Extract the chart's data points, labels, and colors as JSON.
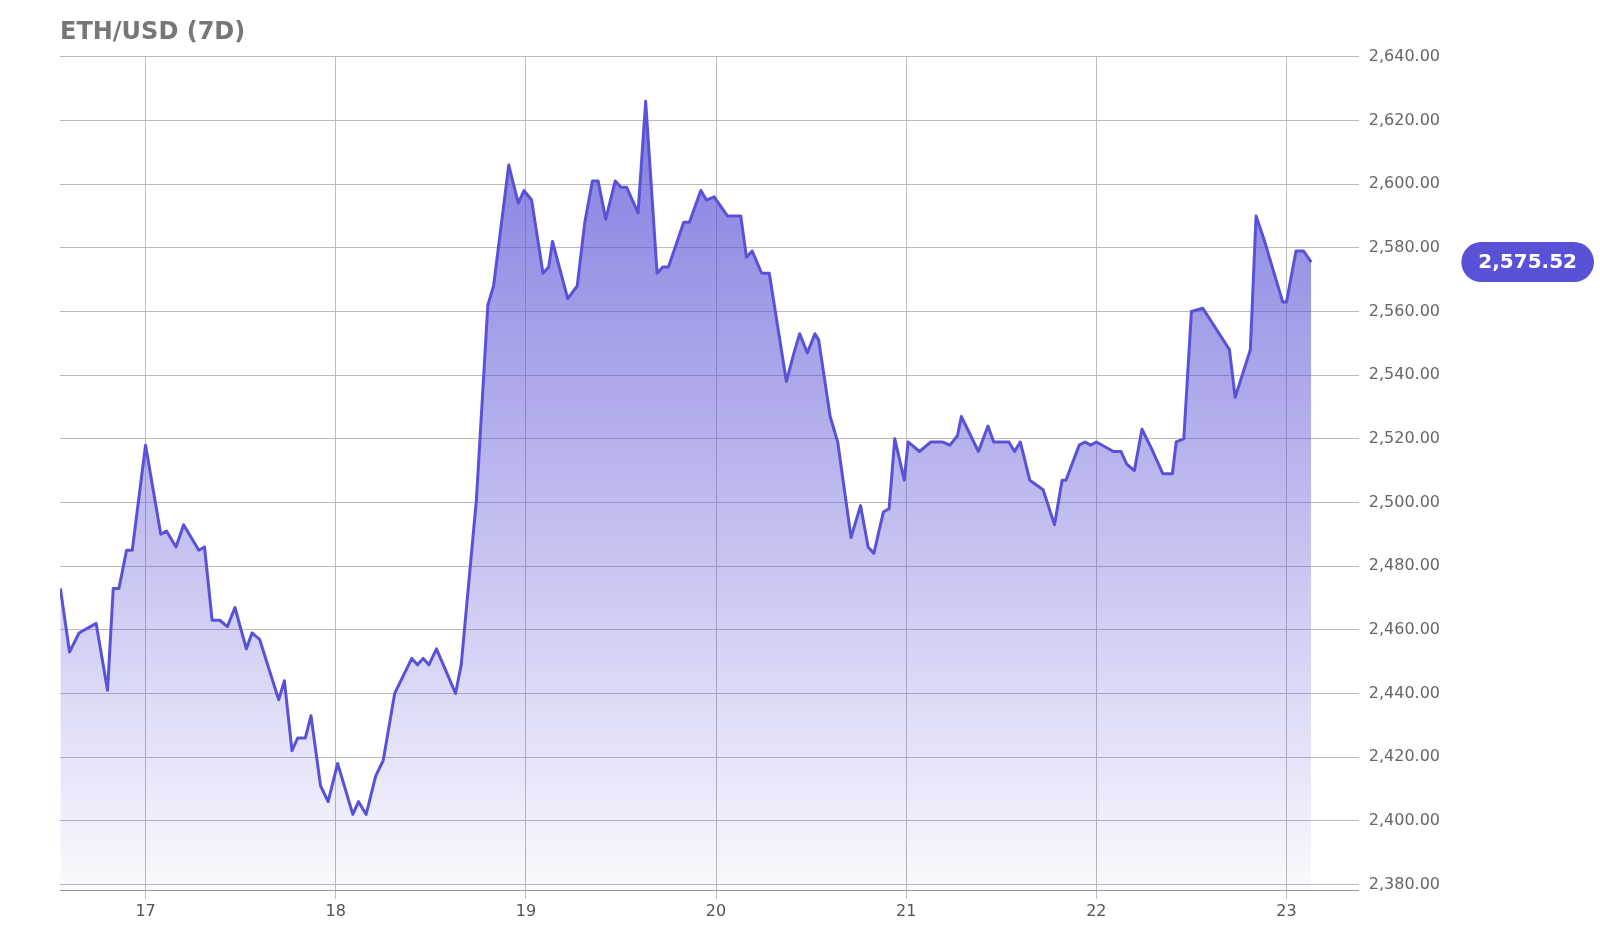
{
  "chart_data": {
    "type": "area",
    "title": "ETH/USD (7D)",
    "x": [
      16.552,
      16.6,
      16.65,
      16.74,
      16.8,
      16.83,
      16.86,
      16.9,
      16.93,
      17.0,
      17.08,
      17.11,
      17.16,
      17.2,
      17.28,
      17.31,
      17.35,
      17.39,
      17.43,
      17.47,
      17.53,
      17.56,
      17.6,
      17.7,
      17.73,
      17.77,
      17.8,
      17.84,
      17.87,
      17.92,
      17.96,
      18.01,
      18.09,
      18.12,
      18.16,
      18.21,
      18.25,
      18.31,
      18.4,
      18.43,
      18.46,
      18.49,
      18.53,
      18.63,
      18.66,
      18.74,
      18.8,
      18.83,
      18.91,
      18.96,
      18.99,
      19.03,
      19.09,
      19.12,
      19.14,
      19.22,
      19.27,
      19.31,
      19.35,
      19.38,
      19.42,
      19.47,
      19.5,
      19.53,
      19.59,
      19.63,
      19.69,
      19.72,
      19.75,
      19.83,
      19.86,
      19.92,
      19.95,
      19.99,
      20.06,
      20.13,
      20.16,
      20.19,
      20.24,
      20.28,
      20.37,
      20.41,
      20.44,
      20.48,
      20.52,
      20.54,
      20.6,
      20.64,
      20.71,
      20.76,
      20.8,
      20.83,
      20.88,
      20.91,
      20.94,
      20.99,
      21.01,
      21.07,
      21.13,
      21.19,
      21.23,
      21.27,
      21.29,
      21.38,
      21.43,
      21.46,
      21.54,
      21.57,
      21.6,
      21.65,
      21.72,
      21.78,
      21.82,
      21.84,
      21.91,
      21.94,
      21.97,
      22.0,
      22.09,
      22.13,
      22.16,
      22.2,
      22.24,
      22.29,
      22.35,
      22.4,
      22.42,
      22.46,
      22.5,
      22.56,
      22.7,
      22.73,
      22.81,
      22.84,
      22.88,
      22.98,
      23.0,
      23.05,
      23.09,
      23.13
    ],
    "series": [
      {
        "color": "#5a52d6",
        "values": [
          2473,
          2453,
          2459,
          2462,
          2441,
          2473,
          2473,
          2485,
          2485,
          2518,
          2490,
          2491,
          2486,
          2493,
          2485,
          2486,
          2463,
          2463,
          2461,
          2467,
          2454,
          2459,
          2457,
          2438,
          2444,
          2422,
          2426,
          2426,
          2433,
          2411,
          2406,
          2418,
          2402,
          2406,
          2402,
          2414,
          2419,
          2440,
          2451,
          2449,
          2451,
          2449,
          2454,
          2440,
          2449,
          2501,
          2562,
          2568,
          2606,
          2594,
          2598,
          2595,
          2572,
          2574,
          2582,
          2564,
          2568,
          2588,
          2601,
          2601,
          2589,
          2601,
          2599,
          2599,
          2591,
          2626,
          2572,
          2574,
          2574,
          2588,
          2588,
          2598,
          2595,
          2596,
          2590,
          2590,
          2577,
          2579,
          2572,
          2572,
          2538,
          2547,
          2553,
          2547,
          2553,
          2551,
          2527,
          2519,
          2489,
          2499,
          2486,
          2484,
          2497,
          2498,
          2520,
          2507,
          2519,
          2516,
          2519,
          2519,
          2518,
          2521,
          2527,
          2516,
          2524,
          2519,
          2519,
          2516,
          2519,
          2507,
          2504,
          2493,
          2507,
          2507,
          2518,
          2519,
          2518,
          2519,
          2516,
          2516,
          2512,
          2510,
          2523,
          2517,
          2509,
          2509,
          2519,
          2520,
          2560,
          2561,
          2548,
          2533,
          2548,
          2590,
          2583,
          2563,
          2563,
          2579,
          2579,
          2575.52
        ]
      }
    ],
    "xlim": [
      16.55,
      23.38
    ],
    "xticks": [
      17,
      18,
      19,
      20,
      21,
      22,
      23
    ],
    "ylim": [
      2378,
      2640
    ],
    "yticks": [
      {
        "value": 2380,
        "label": "2,380.00"
      },
      {
        "value": 2400,
        "label": "2,400.00"
      },
      {
        "value": 2420,
        "label": "2,420.00"
      },
      {
        "value": 2440,
        "label": "2,440.00"
      },
      {
        "value": 2460,
        "label": "2,460.00"
      },
      {
        "value": 2480,
        "label": "2,480.00"
      },
      {
        "value": 2500,
        "label": "2,500.00"
      },
      {
        "value": 2520,
        "label": "2,520.00"
      },
      {
        "value": 2540,
        "label": "2,540.00"
      },
      {
        "value": 2560,
        "label": "2,560.00"
      },
      {
        "value": 2580,
        "label": "2,580.00"
      },
      {
        "value": 2600,
        "label": "2,600.00"
      },
      {
        "value": 2620,
        "label": "2,620.00"
      },
      {
        "value": 2640,
        "label": "2,640.00"
      }
    ],
    "annotations": [
      "2,575.52"
    ],
    "grid": true,
    "legend": false,
    "marker": "none",
    "line_style": "solid"
  }
}
